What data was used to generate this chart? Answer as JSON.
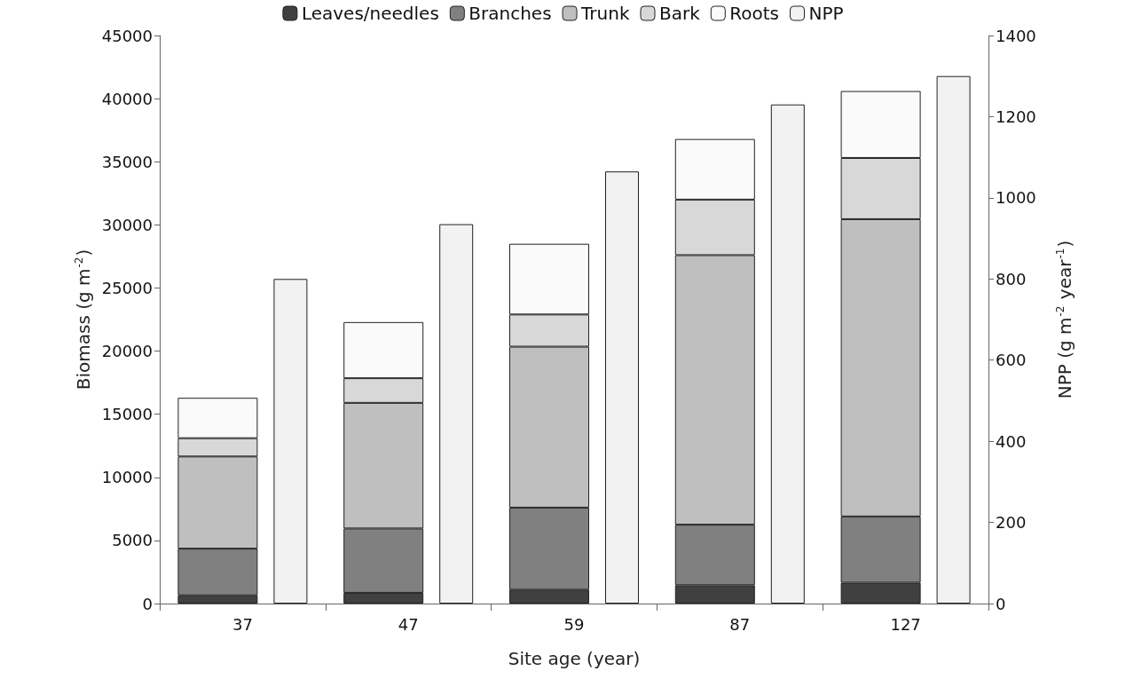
{
  "chart_data": {
    "type": "bar",
    "stacked": true,
    "xlabel": "Site age (year)",
    "ylabel": "Biomass (g m$^{-2}$)",
    "y2label": "NPP (g m$^{-2}$ year$^{-1}$)",
    "categories": [
      "37",
      "47",
      "59",
      "87",
      "127"
    ],
    "series": [
      {
        "name": "Leaves/needles",
        "color": "#404040",
        "values": [
          650,
          850,
          1100,
          1450,
          1650
        ]
      },
      {
        "name": "Branches",
        "color": "#808080",
        "values": [
          3700,
          5100,
          6500,
          4800,
          5250
        ]
      },
      {
        "name": "Trunk",
        "color": "#bfbfbf",
        "values": [
          7300,
          9950,
          12750,
          21350,
          23550
        ]
      },
      {
        "name": "Bark",
        "color": "#d8d8d8",
        "values": [
          1450,
          1950,
          2550,
          4400,
          4850
        ]
      },
      {
        "name": "Roots",
        "color": "#fafafa",
        "values": [
          3200,
          4450,
          5600,
          4800,
          5300
        ]
      },
      {
        "name": "NPP",
        "color": "#f2f2f2",
        "axis": "y2",
        "values": [
          800,
          935,
          1065,
          1230,
          1300
        ]
      }
    ],
    "ylim": [
      0,
      45000
    ],
    "yticks": [
      0,
      5000,
      10000,
      15000,
      20000,
      25000,
      30000,
      35000,
      40000,
      45000
    ],
    "y2lim": [
      0,
      1400
    ],
    "y2ticks": [
      0,
      200,
      400,
      600,
      800,
      1000,
      1200,
      1400
    ],
    "grid": false,
    "legend": "top"
  }
}
